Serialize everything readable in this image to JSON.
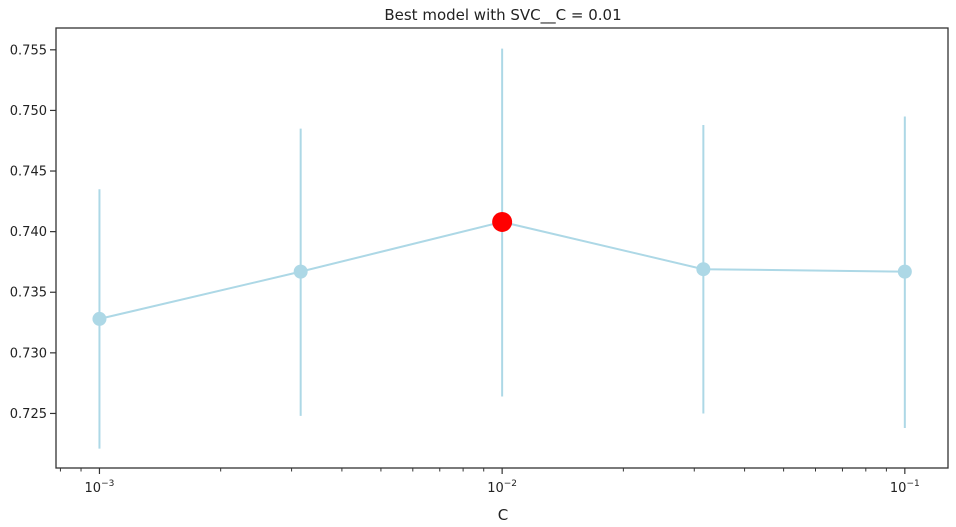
{
  "chart_data": {
    "type": "line",
    "title": "Best model with SVC__C = 0.01",
    "xlabel": "C",
    "ylabel": "",
    "x_scale": "log",
    "xlim": [
      0.00078,
      0.128
    ],
    "ylim": [
      0.7205,
      0.7568
    ],
    "x_ticks": [
      {
        "value": 0.001,
        "base": "10",
        "exp": "−3"
      },
      {
        "value": 0.01,
        "base": "10",
        "exp": "−2"
      },
      {
        "value": 0.1,
        "base": "10",
        "exp": "−1"
      }
    ],
    "y_ticks": [
      "0.725",
      "0.730",
      "0.735",
      "0.740",
      "0.745",
      "0.750",
      "0.755"
    ],
    "grid": false,
    "colors": {
      "series": "#add8e6",
      "best": "#ff0000",
      "axes": "#333333"
    },
    "series": [
      {
        "x": [
          0.001,
          0.00316,
          0.01,
          0.0316,
          0.1
        ],
        "y": [
          0.7328,
          0.7367,
          0.7408,
          0.7369,
          0.7367
        ],
        "y_lower": [
          0.7221,
          0.7248,
          0.7264,
          0.725,
          0.7238
        ],
        "y_upper": [
          0.7435,
          0.7485,
          0.7551,
          0.7488,
          0.7495
        ]
      }
    ],
    "best_point": {
      "x": 0.01,
      "y": 0.7408
    }
  }
}
